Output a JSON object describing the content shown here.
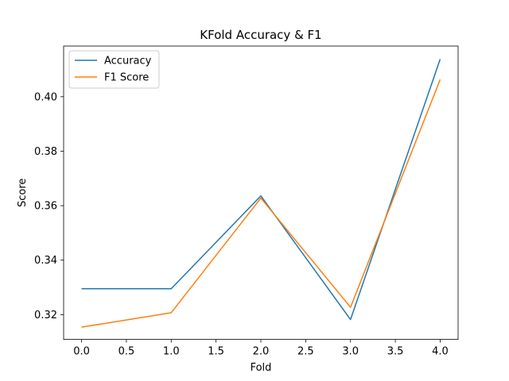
{
  "chart_data": {
    "type": "line",
    "title": "KFold Accuracy & F1",
    "xlabel": "Fold",
    "ylabel": "Score",
    "xlim": [
      -0.2,
      4.2
    ],
    "ylim": [
      0.3109,
      0.4186
    ],
    "x_ticks": [
      0.0,
      0.5,
      1.0,
      1.5,
      2.0,
      2.5,
      3.0,
      3.5,
      4.0
    ],
    "x_tick_labels": [
      "0.0",
      "0.5",
      "1.0",
      "1.5",
      "2.0",
      "2.5",
      "3.0",
      "3.5",
      "4.0"
    ],
    "y_ticks": [
      0.32,
      0.34,
      0.36,
      0.38,
      0.4
    ],
    "y_tick_labels": [
      "0.32",
      "0.34",
      "0.36",
      "0.38",
      "0.40"
    ],
    "grid": false,
    "legend_position": "upper-left",
    "x": [
      0,
      1,
      2,
      3,
      4
    ],
    "series": [
      {
        "name": "Accuracy",
        "color": "#1f77b4",
        "values": [
          0.3295,
          0.3295,
          0.3636,
          0.3182,
          0.4138
        ]
      },
      {
        "name": "F1 Score",
        "color": "#ff7f0e",
        "values": [
          0.3154,
          0.3207,
          0.3628,
          0.3227,
          0.4063
        ]
      }
    ]
  }
}
